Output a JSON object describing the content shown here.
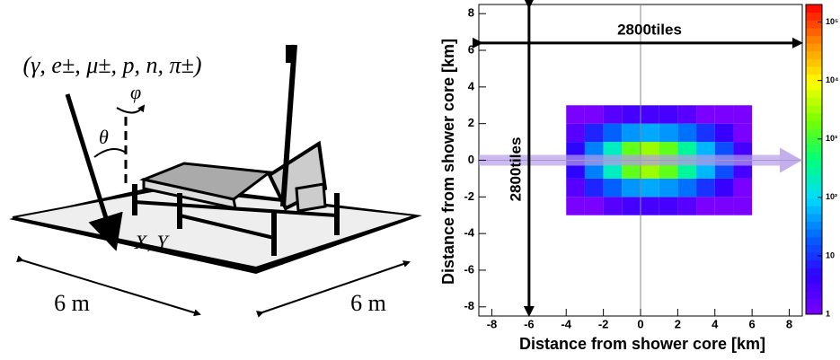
{
  "diagram": {
    "labels": {
      "particles": "(γ, e±, μ±, p, n, π±)",
      "phi": "φ",
      "theta": "θ",
      "position": "X, Y",
      "width": "6 m",
      "depth": "6 m"
    }
  },
  "chart_data": {
    "type": "heatmap",
    "xlabel": "Distance from shower core [km]",
    "ylabel": "Distance from shower core [km]",
    "annotations": {
      "horizontal": "2800tiles",
      "vertical": "2800tiles"
    },
    "xlim": [
      -8.7,
      8.7
    ],
    "ylim": [
      -8.5,
      8.5
    ],
    "xticks": [
      -8,
      -6,
      -4,
      -2,
      0,
      2,
      4,
      6,
      8
    ],
    "yticks": [
      -8,
      -6,
      -4,
      -2,
      0,
      2,
      4,
      6,
      8
    ],
    "x_bins": [
      -4,
      -3,
      -2,
      -1,
      0,
      1,
      2,
      3,
      4,
      5,
      6
    ],
    "y_bins": [
      -3,
      -2,
      -1,
      0,
      1,
      2,
      3
    ],
    "z": [
      [
        1,
        1,
        2,
        3,
        3,
        3,
        2,
        1,
        1,
        1
      ],
      [
        2,
        8,
        20,
        40,
        50,
        40,
        25,
        10,
        4,
        1
      ],
      [
        5,
        30,
        200,
        1500,
        3000,
        1500,
        300,
        60,
        15,
        3
      ],
      [
        5,
        30,
        200,
        1500,
        3000,
        1500,
        300,
        60,
        15,
        3
      ],
      [
        2,
        8,
        20,
        40,
        50,
        40,
        25,
        10,
        4,
        1
      ],
      [
        1,
        1,
        2,
        3,
        3,
        3,
        2,
        1,
        1,
        1
      ]
    ],
    "zlim": [
      1,
      200000
    ],
    "zscale": "log",
    "zticks": [
      1,
      10,
      {
        "value": 100,
        "label": "10²"
      },
      {
        "value": 1000,
        "label": "10³"
      },
      {
        "value": 10000,
        "label": "10⁴"
      },
      {
        "value": 100000,
        "label": "10⁵"
      }
    ],
    "zero_lines": true
  }
}
